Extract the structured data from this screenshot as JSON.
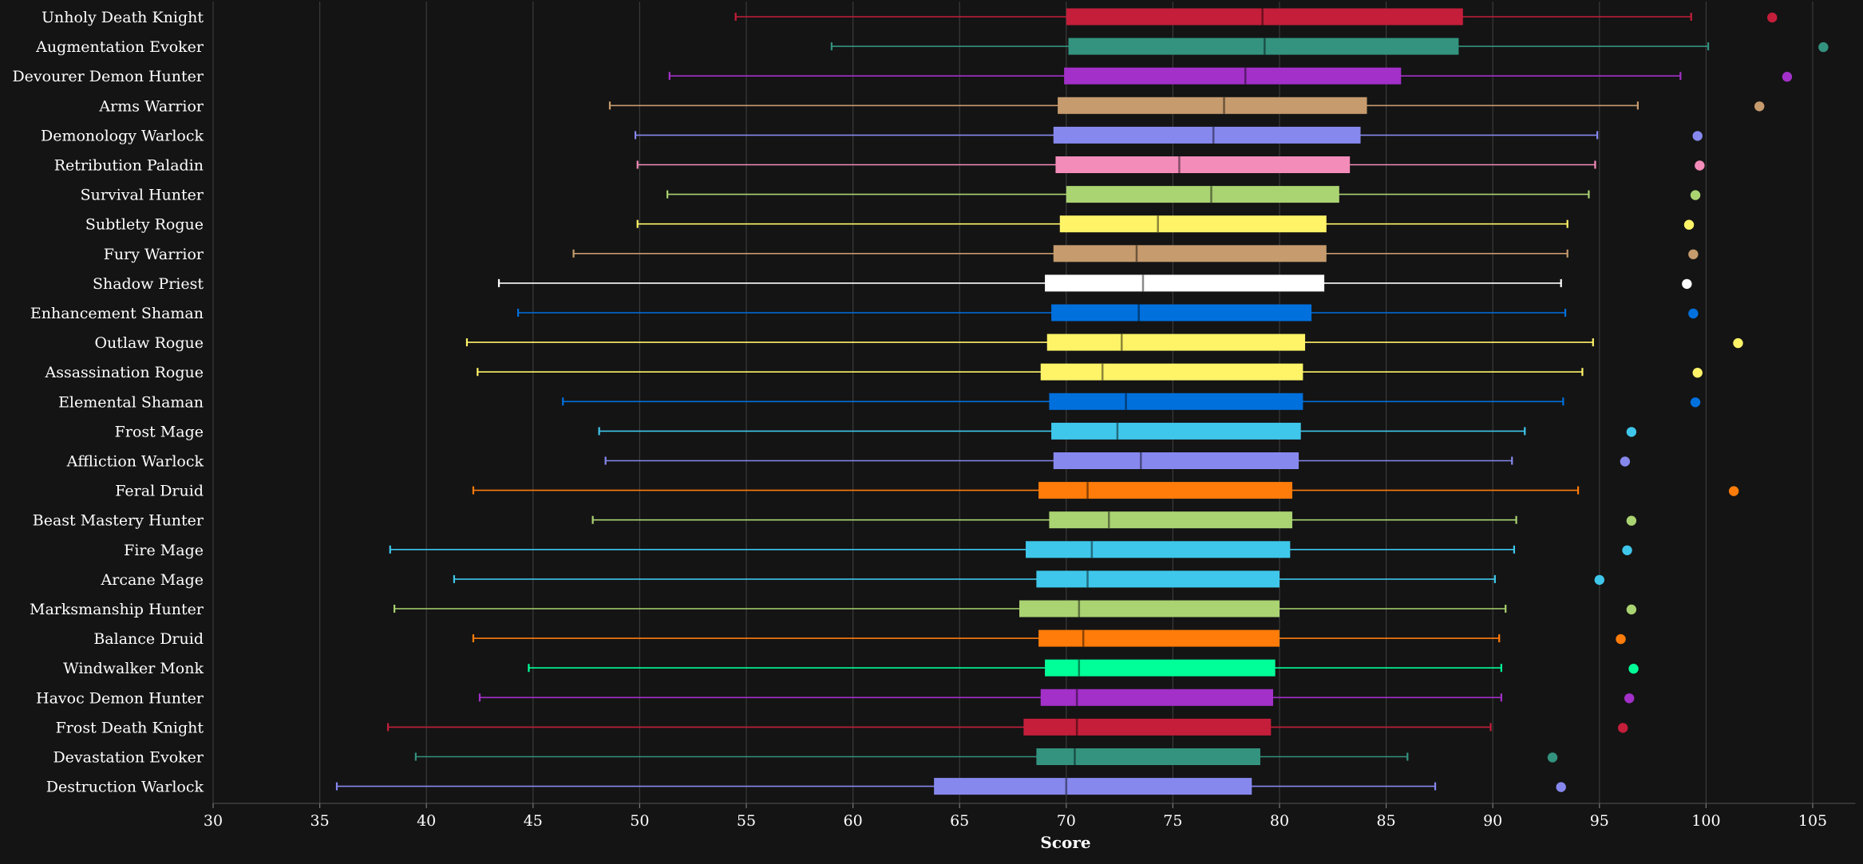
{
  "chart_data": {
    "type": "boxplot",
    "xlabel": "Score",
    "xlim": [
      30,
      107
    ],
    "xticks": [
      30,
      35,
      40,
      45,
      50,
      55,
      60,
      65,
      70,
      75,
      80,
      85,
      90,
      95,
      100,
      105
    ],
    "grid": true,
    "background": "#141414",
    "series": [
      {
        "name": "Unholy Death Knight",
        "color": "#c41e3a",
        "min": 54.5,
        "q1": 70.0,
        "median": 79.2,
        "q3": 88.6,
        "max": 99.3,
        "outlier": 103.1
      },
      {
        "name": "Augmentation Evoker",
        "color": "#33937f",
        "min": 59.0,
        "q1": 70.1,
        "median": 79.3,
        "q3": 88.4,
        "max": 100.1,
        "outlier": 105.5
      },
      {
        "name": "Devourer Demon Hunter",
        "color": "#a330c9",
        "min": 51.4,
        "q1": 69.9,
        "median": 78.4,
        "q3": 85.7,
        "max": 98.8,
        "outlier": 103.8
      },
      {
        "name": "Arms Warrior",
        "color": "#c69b6d",
        "min": 48.6,
        "q1": 69.6,
        "median": 77.4,
        "q3": 84.1,
        "max": 96.8,
        "outlier": 102.5
      },
      {
        "name": "Demonology Warlock",
        "color": "#8788ee",
        "min": 49.8,
        "q1": 69.4,
        "median": 76.9,
        "q3": 83.8,
        "max": 94.9,
        "outlier": 99.6
      },
      {
        "name": "Retribution Paladin",
        "color": "#f48cba",
        "min": 49.9,
        "q1": 69.5,
        "median": 75.3,
        "q3": 83.3,
        "max": 94.8,
        "outlier": 99.7
      },
      {
        "name": "Survival Hunter",
        "color": "#aad372",
        "min": 51.3,
        "q1": 70.0,
        "median": 76.8,
        "q3": 82.8,
        "max": 94.5,
        "outlier": 99.5
      },
      {
        "name": "Subtlety Rogue",
        "color": "#fff468",
        "min": 49.9,
        "q1": 69.7,
        "median": 74.3,
        "q3": 82.2,
        "max": 93.5,
        "outlier": 99.2
      },
      {
        "name": "Fury Warrior",
        "color": "#c69b6d",
        "min": 46.9,
        "q1": 69.4,
        "median": 73.3,
        "q3": 82.2,
        "max": 93.5,
        "outlier": 99.4
      },
      {
        "name": "Shadow Priest",
        "color": "#ffffff",
        "min": 43.4,
        "q1": 69.0,
        "median": 73.6,
        "q3": 82.1,
        "max": 93.2,
        "outlier": 99.1
      },
      {
        "name": "Enhancement Shaman",
        "color": "#0070dd",
        "min": 44.3,
        "q1": 69.3,
        "median": 73.4,
        "q3": 81.5,
        "max": 93.4,
        "outlier": 99.4
      },
      {
        "name": "Outlaw Rogue",
        "color": "#fff468",
        "min": 41.9,
        "q1": 69.1,
        "median": 72.6,
        "q3": 81.2,
        "max": 94.7,
        "outlier": 101.5
      },
      {
        "name": "Assassination Rogue",
        "color": "#fff468",
        "min": 42.4,
        "q1": 68.8,
        "median": 71.7,
        "q3": 81.1,
        "max": 94.2,
        "outlier": 99.6
      },
      {
        "name": "Elemental Shaman",
        "color": "#0070dd",
        "min": 46.4,
        "q1": 69.2,
        "median": 72.8,
        "q3": 81.1,
        "max": 93.3,
        "outlier": 99.5
      },
      {
        "name": "Frost Mage",
        "color": "#3fc7eb",
        "min": 48.1,
        "q1": 69.3,
        "median": 72.4,
        "q3": 81.0,
        "max": 91.5,
        "outlier": 96.5
      },
      {
        "name": "Affliction Warlock",
        "color": "#8788ee",
        "min": 48.4,
        "q1": 69.4,
        "median": 73.5,
        "q3": 80.9,
        "max": 90.9,
        "outlier": 96.2
      },
      {
        "name": "Feral Druid",
        "color": "#ff7c0a",
        "min": 42.2,
        "q1": 68.7,
        "median": 71.0,
        "q3": 80.6,
        "max": 94.0,
        "outlier": 101.3
      },
      {
        "name": "Beast Mastery Hunter",
        "color": "#aad372",
        "min": 47.8,
        "q1": 69.2,
        "median": 72.0,
        "q3": 80.6,
        "max": 91.1,
        "outlier": 96.5
      },
      {
        "name": "Fire Mage",
        "color": "#3fc7eb",
        "min": 38.3,
        "q1": 68.1,
        "median": 71.2,
        "q3": 80.5,
        "max": 91.0,
        "outlier": 96.3
      },
      {
        "name": "Arcane Mage",
        "color": "#3fc7eb",
        "min": 41.3,
        "q1": 68.6,
        "median": 71.0,
        "q3": 80.0,
        "max": 90.1,
        "outlier": 95.0
      },
      {
        "name": "Marksmanship Hunter",
        "color": "#aad372",
        "min": 38.5,
        "q1": 67.8,
        "median": 70.6,
        "q3": 80.0,
        "max": 90.6,
        "outlier": 96.5
      },
      {
        "name": "Balance Druid",
        "color": "#ff7c0a",
        "min": 42.2,
        "q1": 68.7,
        "median": 70.8,
        "q3": 80.0,
        "max": 90.3,
        "outlier": 96.0
      },
      {
        "name": "Windwalker Monk",
        "color": "#00ff98",
        "min": 44.8,
        "q1": 69.0,
        "median": 70.6,
        "q3": 79.8,
        "max": 90.4,
        "outlier": 96.6
      },
      {
        "name": "Havoc Demon Hunter",
        "color": "#a330c9",
        "min": 42.5,
        "q1": 68.8,
        "median": 70.5,
        "q3": 79.7,
        "max": 90.4,
        "outlier": 96.4
      },
      {
        "name": "Frost Death Knight",
        "color": "#c41e3a",
        "min": 38.2,
        "q1": 68.0,
        "median": 70.5,
        "q3": 79.6,
        "max": 89.9,
        "outlier": 96.1
      },
      {
        "name": "Devastation Evoker",
        "color": "#33937f",
        "min": 39.5,
        "q1": 68.6,
        "median": 70.4,
        "q3": 79.1,
        "max": 86.0,
        "outlier": 92.8
      },
      {
        "name": "Destruction Warlock",
        "color": "#8788ee",
        "min": 35.8,
        "q1": 63.8,
        "median": 70.0,
        "q3": 78.7,
        "max": 87.3,
        "outlier": 93.2
      }
    ]
  }
}
